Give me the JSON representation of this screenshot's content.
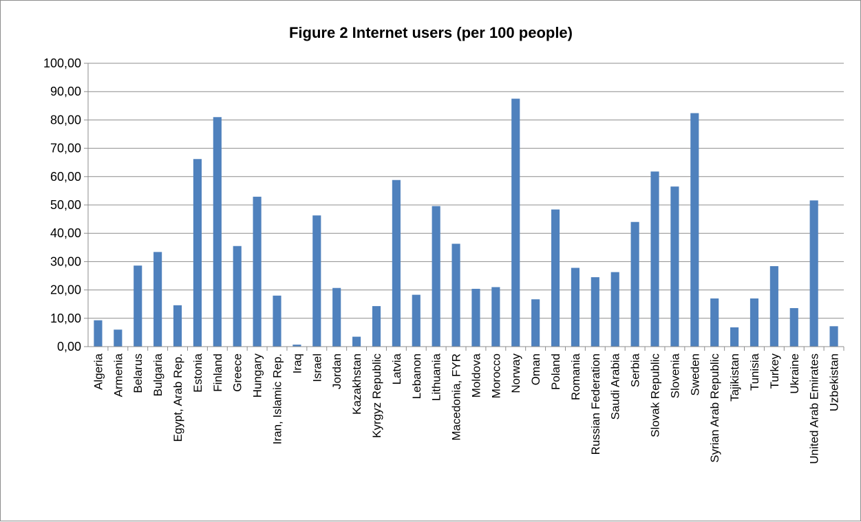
{
  "chart_data": {
    "type": "bar",
    "title": "Figure 2 Internet users (per 100 people)",
    "xlabel": "",
    "ylabel": "",
    "ylim": [
      0,
      100
    ],
    "y_ticks": [
      "0,00",
      "10,00",
      "20,00",
      "30,00",
      "40,00",
      "50,00",
      "60,00",
      "70,00",
      "80,00",
      "90,00",
      "100,00"
    ],
    "grid": true,
    "legend": "none",
    "bar_color": "#4F81BD",
    "categories": [
      "Algeria",
      "Armenia",
      "Belarus",
      "Bulgaria",
      "Egypt, Arab Rep.",
      "Estonia",
      "Finland",
      "Greece",
      "Hungary",
      "Iran, Islamic Rep.",
      "Iraq",
      "Israel",
      "Jordan",
      "Kazakhstan",
      "Kyrgyz Republic",
      "Latvia",
      "Lebanon",
      "Lithuania",
      "Macedonia, FYR",
      "Moldova",
      "Morocco",
      "Norway",
      "Oman",
      "Poland",
      "Romania",
      "Russian Federation",
      "Saudi Arabia",
      "Serbia",
      "Slovak Republic",
      "Slovenia",
      "Sweden",
      "Syrian Arab Republic",
      "Tajikistan",
      "Tunisia",
      "Turkey",
      "Ukraine",
      "United Arab Emirates",
      "Uzbekistan"
    ],
    "values": [
      9.3,
      6.0,
      28.6,
      33.4,
      14.6,
      66.2,
      81.0,
      35.5,
      52.9,
      18.0,
      0.7,
      46.3,
      20.7,
      3.5,
      14.3,
      58.8,
      18.3,
      49.6,
      36.3,
      20.4,
      21.0,
      87.5,
      16.7,
      48.4,
      27.8,
      24.5,
      26.3,
      44.0,
      61.8,
      56.5,
      82.4,
      17.0,
      6.8,
      17.0,
      28.4,
      13.6,
      51.6,
      7.2
    ]
  }
}
